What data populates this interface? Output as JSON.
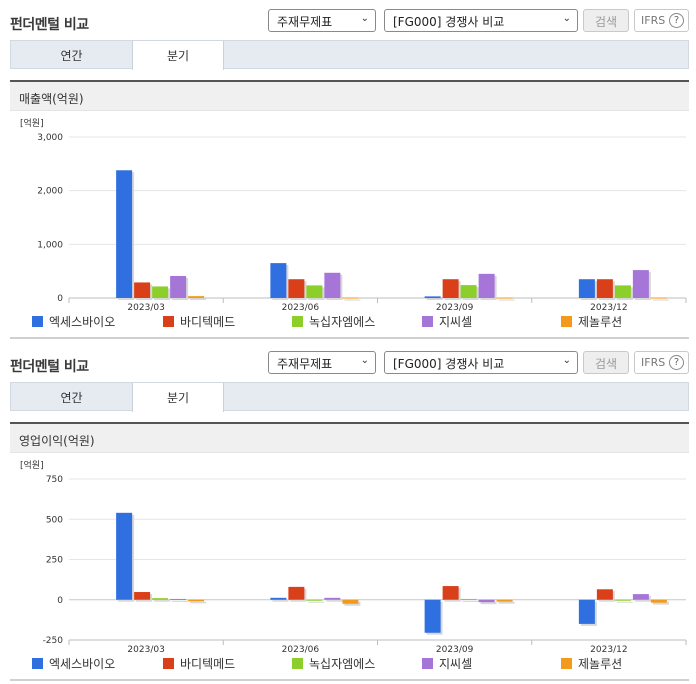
{
  "header": {
    "title": "펀더멘털 비교",
    "select_period": "주재무제표",
    "select_compare": "[FG000] 경쟁사 비교",
    "search_label": "검색",
    "ifrs_label": "IFRS",
    "help_glyph": "?"
  },
  "tabs": [
    "연간",
    "분기"
  ],
  "legend": [
    {
      "name": "엑세스바이오",
      "color": "#2f6fdf"
    },
    {
      "name": "바디텍메드",
      "color": "#d9401a"
    },
    {
      "name": "녹십자엠에스",
      "color": "#8ccf2a"
    },
    {
      "name": "지씨셀",
      "color": "#a675d8"
    },
    {
      "name": "제놀루션",
      "color": "#f39a1c"
    }
  ],
  "chart_data": [
    {
      "type": "bar",
      "title": "매출액(억원)",
      "unit_label": "[억원]",
      "categories": [
        "2023/03",
        "2023/06",
        "2023/09",
        "2023/12"
      ],
      "ylim": [
        0,
        3000
      ],
      "ticks": [
        0,
        1000,
        2000,
        3000
      ],
      "tick_labels": [
        "0",
        "1,000",
        "2,000",
        "3,000"
      ],
      "series": [
        {
          "name": "엑세스바이오",
          "values": [
            2380,
            650,
            30,
            350
          ]
        },
        {
          "name": "바디텍메드",
          "values": [
            290,
            350,
            350,
            350
          ]
        },
        {
          "name": "녹십자엠에스",
          "values": [
            215,
            235,
            240,
            235
          ]
        },
        {
          "name": "지씨셀",
          "values": [
            410,
            470,
            450,
            520
          ]
        },
        {
          "name": "제놀루션",
          "values": [
            35,
            8,
            8,
            8
          ]
        }
      ]
    },
    {
      "type": "bar",
      "title": "영업이익(억원)",
      "unit_label": "[억원]",
      "categories": [
        "2023/03",
        "2023/06",
        "2023/09",
        "2023/12"
      ],
      "ylim": [
        -250,
        750
      ],
      "ticks": [
        -250,
        0,
        250,
        500,
        750
      ],
      "tick_labels": [
        "-250",
        "0",
        "250",
        "500",
        "750"
      ],
      "series": [
        {
          "name": "엑세스바이오",
          "values": [
            540,
            12,
            -205,
            -150
          ]
        },
        {
          "name": "바디텍메드",
          "values": [
            48,
            80,
            85,
            65
          ]
        },
        {
          "name": "녹십자엠에스",
          "values": [
            10,
            -2,
            5,
            0
          ]
        },
        {
          "name": "지씨셀",
          "values": [
            5,
            12,
            -15,
            35
          ]
        },
        {
          "name": "제놀루션",
          "values": [
            -10,
            -25,
            -12,
            -18
          ]
        }
      ]
    }
  ]
}
